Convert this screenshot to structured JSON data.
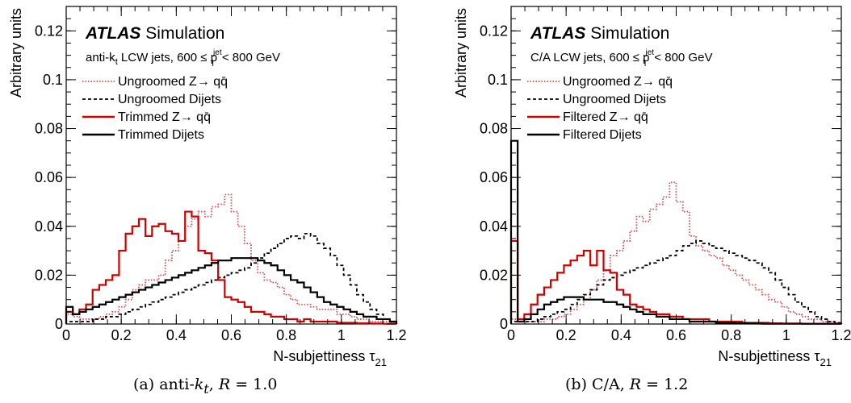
{
  "colors": {
    "zqq": "#cc0000",
    "dijet": "#000000",
    "zqq_ungroomed": "#d05050"
  },
  "chart_data": [
    {
      "type": "line",
      "ylabel": "Arbitrary units",
      "xlabel_main": "N-subjettiness τ",
      "xlabel_sub": "21",
      "xlim": [
        0,
        1.2
      ],
      "ylim": [
        0,
        0.13
      ],
      "xticks": [
        "0",
        "0.2",
        "0.4",
        "0.6",
        "0.8",
        "1",
        "1.2"
      ],
      "xtick_values": [
        0,
        0.2,
        0.4,
        0.6,
        0.8,
        1.0,
        1.2
      ],
      "yticks": [
        "0",
        "0.02",
        "0.04",
        "0.06",
        "0.08",
        "0.1",
        "0.12"
      ],
      "ytick_values": [
        0,
        0.02,
        0.04,
        0.06,
        0.08,
        0.1,
        0.12
      ],
      "atlas_label": "ATLAS",
      "atlas_sub": "Simulation",
      "jet_label": {
        "pre": "anti-k",
        "sub1": "t",
        "mid": " LCW jets, 600 ≤ p",
        "sup": "jet",
        "sub2": "T",
        "post": " < 800 GeV"
      },
      "legend": [
        {
          "label": "Ungroomed Z→ qq̄",
          "color_key": "zqq_ungroomed",
          "style": "dotted"
        },
        {
          "label": "Ungroomed Dijets",
          "color_key": "dijet",
          "style": "dashed"
        },
        {
          "label": "Trimmed Z→ qq̄",
          "color_key": "zqq",
          "style": "solid"
        },
        {
          "label": "Trimmed Dijets",
          "color_key": "dijet",
          "style": "solid"
        }
      ],
      "bin_width": 0.024,
      "series": [
        {
          "name": "Ungroomed Z→ qq̄",
          "style": "dotted",
          "color_key": "zqq_ungroomed",
          "values": [
            0.004,
            0.003,
            0.002,
            0.002,
            0.002,
            0.003,
            0.004,
            0.005,
            0.007,
            0.01,
            0.014,
            0.016,
            0.018,
            0.018,
            0.02,
            0.026,
            0.03,
            0.034,
            0.04,
            0.043,
            0.046,
            0.044,
            0.048,
            0.049,
            0.053,
            0.046,
            0.04,
            0.033,
            0.026,
            0.021,
            0.018,
            0.017,
            0.015,
            0.012,
            0.01,
            0.008,
            0.008,
            0.007,
            0.006,
            0.006,
            0.006,
            0.004,
            0.004,
            0.003,
            0.002,
            0.002,
            0.001,
            0.001,
            0.001,
            0.0005
          ]
        },
        {
          "name": "Ungroomed Dijets",
          "style": "dashed",
          "color_key": "dijet",
          "values": [
            0.001,
            0.001,
            0.001,
            0.001,
            0.002,
            0.002,
            0.003,
            0.003,
            0.004,
            0.005,
            0.006,
            0.007,
            0.008,
            0.009,
            0.01,
            0.011,
            0.012,
            0.013,
            0.014,
            0.015,
            0.016,
            0.017,
            0.018,
            0.019,
            0.02,
            0.021,
            0.022,
            0.023,
            0.025,
            0.027,
            0.029,
            0.031,
            0.033,
            0.035,
            0.036,
            0.035,
            0.037,
            0.036,
            0.033,
            0.031,
            0.028,
            0.024,
            0.02,
            0.016,
            0.012,
            0.009,
            0.006,
            0.004,
            0.002,
            0.001
          ]
        },
        {
          "name": "Trimmed Z→ qq̄",
          "style": "solid",
          "color_key": "zqq",
          "values": [
            0.005,
            0.004,
            0.006,
            0.008,
            0.014,
            0.016,
            0.018,
            0.02,
            0.03,
            0.037,
            0.04,
            0.043,
            0.036,
            0.04,
            0.041,
            0.038,
            0.037,
            0.034,
            0.046,
            0.044,
            0.03,
            0.029,
            0.026,
            0.018,
            0.011,
            0.01,
            0.009,
            0.007,
            0.005,
            0.005,
            0.004,
            0.003,
            0.003,
            0.002,
            0.002,
            0.001,
            0.002,
            0.001,
            0.001,
            0.001,
            0.001,
            0.0005,
            0.0005,
            0.0005,
            0.0003,
            0.0003,
            0.0002,
            0.0002,
            0.0001,
            0.0001
          ]
        },
        {
          "name": "Trimmed Dijets",
          "style": "solid",
          "color_key": "dijet",
          "values": [
            0.007,
            0.004,
            0.005,
            0.006,
            0.007,
            0.008,
            0.009,
            0.01,
            0.011,
            0.012,
            0.013,
            0.014,
            0.015,
            0.016,
            0.017,
            0.018,
            0.019,
            0.02,
            0.021,
            0.022,
            0.023,
            0.024,
            0.025,
            0.026,
            0.026,
            0.027,
            0.027,
            0.027,
            0.027,
            0.026,
            0.025,
            0.024,
            0.022,
            0.02,
            0.018,
            0.017,
            0.015,
            0.013,
            0.011,
            0.009,
            0.008,
            0.007,
            0.006,
            0.005,
            0.004,
            0.003,
            0.003,
            0.002,
            0.002,
            0.001
          ]
        }
      ],
      "caption": {
        "pre": "(a) anti-",
        "k": "k",
        "t": "t",
        "post": ", ",
        "r": "R",
        "val": " = 1.0"
      }
    },
    {
      "type": "line",
      "ylabel": "Arbitrary units",
      "xlabel_main": "N-subjettiness τ",
      "xlabel_sub": "21",
      "xlim": [
        0,
        1.2
      ],
      "ylim": [
        0,
        0.13
      ],
      "xticks": [
        "0",
        "0.2",
        "0.4",
        "0.6",
        "0.8",
        "1",
        "1.2"
      ],
      "xtick_values": [
        0,
        0.2,
        0.4,
        0.6,
        0.8,
        1.0,
        1.2
      ],
      "yticks": [
        "0",
        "0.02",
        "0.04",
        "0.06",
        "0.08",
        "0.1",
        "0.12"
      ],
      "ytick_values": [
        0,
        0.02,
        0.04,
        0.06,
        0.08,
        0.1,
        0.12
      ],
      "atlas_label": "ATLAS",
      "atlas_sub": "Simulation",
      "jet_label": {
        "pre": "C/A",
        "sub1": "",
        "mid": " LCW jets, 600 ≤ p",
        "sup": "jet",
        "sub2": "T",
        "post": " < 800 GeV"
      },
      "legend": [
        {
          "label": "Ungroomed Z→ qq̄",
          "color_key": "zqq_ungroomed",
          "style": "dotted"
        },
        {
          "label": "Ungroomed Dijets",
          "color_key": "dijet",
          "style": "dashed"
        },
        {
          "label": "Filtered Z→ qq̄",
          "color_key": "zqq",
          "style": "solid"
        },
        {
          "label": "Filtered Dijets",
          "color_key": "dijet",
          "style": "solid"
        }
      ],
      "bin_width": 0.024,
      "series": [
        {
          "name": "Ungroomed Z→ qq̄",
          "style": "dotted",
          "color_key": "zqq_ungroomed",
          "values": [
            0.002,
            0.001,
            0.001,
            0.001,
            0.001,
            0.002,
            0.002,
            0.003,
            0.004,
            0.006,
            0.008,
            0.01,
            0.014,
            0.018,
            0.022,
            0.028,
            0.03,
            0.034,
            0.038,
            0.044,
            0.042,
            0.047,
            0.049,
            0.052,
            0.058,
            0.05,
            0.046,
            0.036,
            0.032,
            0.03,
            0.028,
            0.027,
            0.024,
            0.022,
            0.02,
            0.018,
            0.016,
            0.014,
            0.012,
            0.01,
            0.009,
            0.007,
            0.005,
            0.004,
            0.003,
            0.002,
            0.002,
            0.001,
            0.001,
            0.0005
          ]
        },
        {
          "name": "Ungroomed Dijets",
          "style": "dashed",
          "color_key": "dijet",
          "values": [
            0.001,
            0.001,
            0.001,
            0.001,
            0.002,
            0.003,
            0.004,
            0.005,
            0.006,
            0.008,
            0.01,
            0.012,
            0.014,
            0.016,
            0.018,
            0.019,
            0.02,
            0.021,
            0.022,
            0.023,
            0.024,
            0.025,
            0.026,
            0.027,
            0.028,
            0.03,
            0.032,
            0.033,
            0.034,
            0.033,
            0.032,
            0.031,
            0.03,
            0.029,
            0.028,
            0.027,
            0.026,
            0.025,
            0.023,
            0.021,
            0.018,
            0.015,
            0.012,
            0.009,
            0.007,
            0.005,
            0.003,
            0.002,
            0.001,
            0.0005
          ]
        },
        {
          "name": "Filtered Z→ qq̄",
          "style": "solid",
          "color_key": "zqq",
          "values": [
            0.034,
            0.002,
            0.004,
            0.008,
            0.012,
            0.015,
            0.018,
            0.021,
            0.024,
            0.026,
            0.028,
            0.03,
            0.024,
            0.03,
            0.022,
            0.021,
            0.014,
            0.012,
            0.008,
            0.007,
            0.006,
            0.005,
            0.004,
            0.004,
            0.003,
            0.003,
            0.002,
            0.002,
            0.002,
            0.002,
            0.001,
            0.001,
            0.001,
            0.001,
            0.001,
            0.0005,
            0.0005,
            0.0005,
            0.0005,
            0.0003,
            0.0003,
            0.0002,
            0.0002,
            0.0002,
            0.0001,
            0.0001,
            0.0001,
            0.0001,
            0.0001,
            0.0001
          ]
        },
        {
          "name": "Filtered Dijets",
          "style": "solid",
          "color_key": "dijet",
          "values": [
            0.075,
            0.001,
            0.002,
            0.004,
            0.006,
            0.008,
            0.009,
            0.01,
            0.011,
            0.011,
            0.011,
            0.01,
            0.01,
            0.01,
            0.009,
            0.009,
            0.008,
            0.007,
            0.006,
            0.005,
            0.004,
            0.004,
            0.003,
            0.003,
            0.002,
            0.002,
            0.002,
            0.001,
            0.001,
            0.001,
            0.001,
            0.0005,
            0.0005,
            0.0005,
            0.0003,
            0.0003,
            0.0002,
            0.0002,
            0.0001,
            0.0001,
            0.0001,
            0.0001,
            0.0001,
            0.0001,
            0.0001,
            0.0001,
            0.0001,
            0.0001,
            0.0001,
            0.0001
          ]
        }
      ],
      "caption": {
        "pre": "(b) C/A, ",
        "k": "",
        "t": "",
        "post": "",
        "r": "R",
        "val": " = 1.2"
      }
    }
  ]
}
